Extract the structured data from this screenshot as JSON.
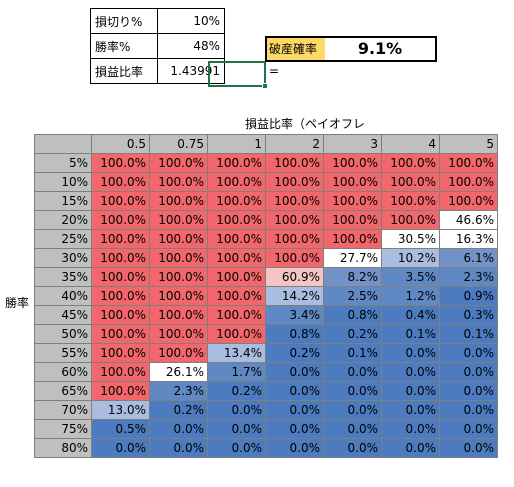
{
  "inputs": {
    "rows": [
      {
        "label": "損切り%",
        "value": "10%"
      },
      {
        "label": "勝率%",
        "value": "48%"
      },
      {
        "label": "損益比率",
        "value": "1.43991"
      }
    ]
  },
  "ruin": {
    "label": "破産確率=",
    "value": "9.1%"
  },
  "matrix": {
    "column_axis_title": "損益比率（ペイオフレシオ）",
    "row_axis_title": "勝率",
    "columns": [
      "0.5",
      "0.75",
      "1",
      "2",
      "3",
      "4",
      "5"
    ],
    "rows": [
      {
        "win_rate": "5%",
        "cells": [
          "100.0%",
          "100.0%",
          "100.0%",
          "100.0%",
          "100.0%",
          "100.0%",
          "100.0%"
        ]
      },
      {
        "win_rate": "10%",
        "cells": [
          "100.0%",
          "100.0%",
          "100.0%",
          "100.0%",
          "100.0%",
          "100.0%",
          "100.0%"
        ]
      },
      {
        "win_rate": "15%",
        "cells": [
          "100.0%",
          "100.0%",
          "100.0%",
          "100.0%",
          "100.0%",
          "100.0%",
          "100.0%"
        ]
      },
      {
        "win_rate": "20%",
        "cells": [
          "100.0%",
          "100.0%",
          "100.0%",
          "100.0%",
          "100.0%",
          "100.0%",
          "46.6%"
        ]
      },
      {
        "win_rate": "25%",
        "cells": [
          "100.0%",
          "100.0%",
          "100.0%",
          "100.0%",
          "100.0%",
          "30.5%",
          "16.3%"
        ]
      },
      {
        "win_rate": "30%",
        "cells": [
          "100.0%",
          "100.0%",
          "100.0%",
          "100.0%",
          "27.7%",
          "10.2%",
          "6.1%"
        ]
      },
      {
        "win_rate": "35%",
        "cells": [
          "100.0%",
          "100.0%",
          "100.0%",
          "60.9%",
          "8.2%",
          "3.5%",
          "2.3%"
        ]
      },
      {
        "win_rate": "40%",
        "cells": [
          "100.0%",
          "100.0%",
          "100.0%",
          "14.2%",
          "2.5%",
          "1.2%",
          "0.9%"
        ]
      },
      {
        "win_rate": "45%",
        "cells": [
          "100.0%",
          "100.0%",
          "100.0%",
          "3.4%",
          "0.8%",
          "0.4%",
          "0.3%"
        ]
      },
      {
        "win_rate": "50%",
        "cells": [
          "100.0%",
          "100.0%",
          "100.0%",
          "0.8%",
          "0.2%",
          "0.1%",
          "0.1%"
        ]
      },
      {
        "win_rate": "55%",
        "cells": [
          "100.0%",
          "100.0%",
          "13.4%",
          "0.2%",
          "0.1%",
          "0.0%",
          "0.0%"
        ]
      },
      {
        "win_rate": "60%",
        "cells": [
          "100.0%",
          "26.1%",
          "1.7%",
          "0.0%",
          "0.0%",
          "0.0%",
          "0.0%"
        ]
      },
      {
        "win_rate": "65%",
        "cells": [
          "100.0%",
          "2.3%",
          "0.2%",
          "0.0%",
          "0.0%",
          "0.0%",
          "0.0%"
        ]
      },
      {
        "win_rate": "70%",
        "cells": [
          "13.0%",
          "0.2%",
          "0.0%",
          "0.0%",
          "0.0%",
          "0.0%",
          "0.0%"
        ]
      },
      {
        "win_rate": "75%",
        "cells": [
          "0.5%",
          "0.0%",
          "0.0%",
          "0.0%",
          "0.0%",
          "0.0%",
          "0.0%"
        ]
      },
      {
        "win_rate": "80%",
        "cells": [
          "0.0%",
          "0.0%",
          "0.0%",
          "0.0%",
          "0.0%",
          "0.0%",
          "0.0%"
        ]
      }
    ]
  },
  "colors": {
    "ruin_high": "#f1676b",
    "ruin_mid": "#f5c5c6",
    "ruin_low": "#4d7bc0",
    "header_gray": "#bfbfbf",
    "label_highlight": "#ffd966",
    "selection_green": "#217346"
  }
}
